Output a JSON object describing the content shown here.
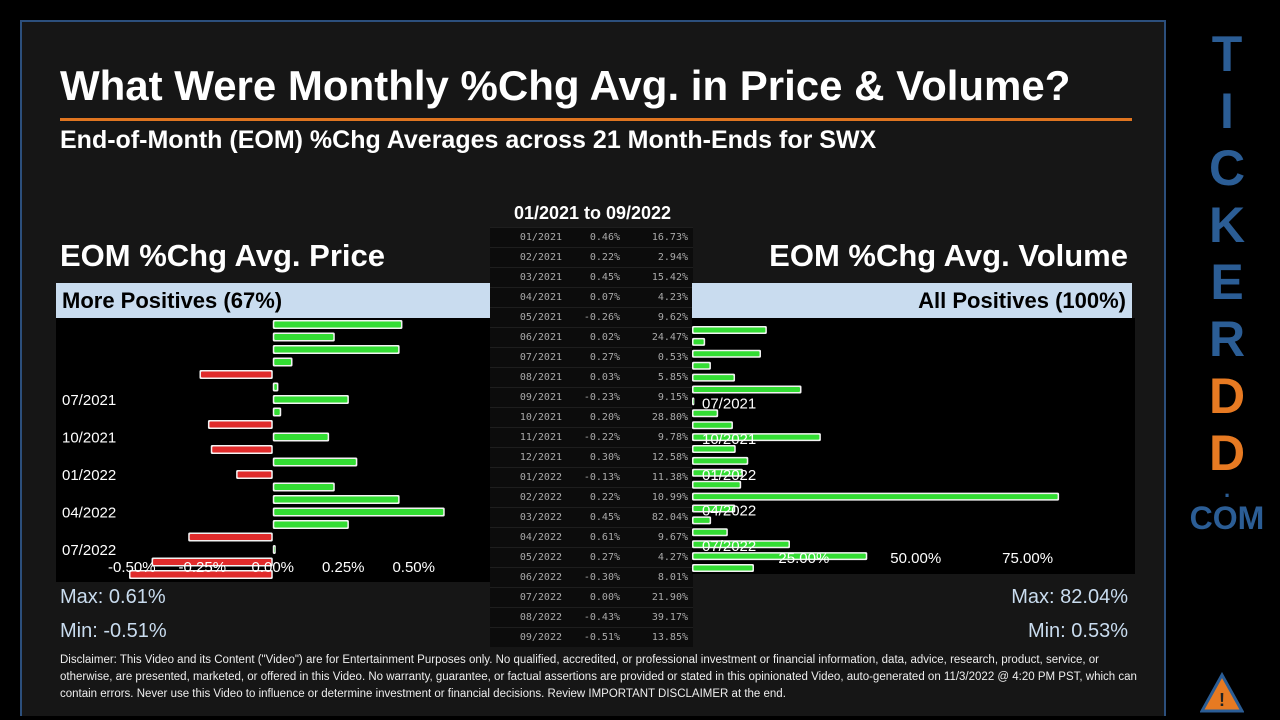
{
  "title": "What Were Monthly %Chg Avg. in Price & Volume?",
  "subtitle": "End-of-Month (EOM) %Chg Averages across 21 Month-Ends for SWX",
  "date_range": "01/2021 to 09/2022",
  "price_panel": {
    "heading": "EOM %Chg Avg. Price",
    "band": "More Positives (67%)",
    "max": "Max: 0.61%",
    "min": "Min: -0.51%"
  },
  "volume_panel": {
    "heading": "EOM %Chg Avg. Volume",
    "band": "All Positives (100%)",
    "max": "Max: 82.04%",
    "min": "Min: 0.53%"
  },
  "table": [
    {
      "month": "01/2021",
      "price": "0.46%",
      "volume": "16.73%"
    },
    {
      "month": "02/2021",
      "price": "0.22%",
      "volume": "2.94%"
    },
    {
      "month": "03/2021",
      "price": "0.45%",
      "volume": "15.42%"
    },
    {
      "month": "04/2021",
      "price": "0.07%",
      "volume": "4.23%"
    },
    {
      "month": "05/2021",
      "price": "-0.26%",
      "volume": "9.62%"
    },
    {
      "month": "06/2021",
      "price": "0.02%",
      "volume": "24.47%"
    },
    {
      "month": "07/2021",
      "price": "0.27%",
      "volume": "0.53%"
    },
    {
      "month": "08/2021",
      "price": "0.03%",
      "volume": "5.85%"
    },
    {
      "month": "09/2021",
      "price": "-0.23%",
      "volume": "9.15%"
    },
    {
      "month": "10/2021",
      "price": "0.20%",
      "volume": "28.80%"
    },
    {
      "month": "11/2021",
      "price": "-0.22%",
      "volume": "9.78%"
    },
    {
      "month": "12/2021",
      "price": "0.30%",
      "volume": "12.58%"
    },
    {
      "month": "01/2022",
      "price": "-0.13%",
      "volume": "11.38%"
    },
    {
      "month": "02/2022",
      "price": "0.22%",
      "volume": "10.99%"
    },
    {
      "month": "03/2022",
      "price": "0.45%",
      "volume": "82.04%"
    },
    {
      "month": "04/2022",
      "price": "0.61%",
      "volume": "9.67%"
    },
    {
      "month": "05/2022",
      "price": "0.27%",
      "volume": "4.27%"
    },
    {
      "month": "06/2022",
      "price": "-0.30%",
      "volume": "8.01%"
    },
    {
      "month": "07/2022",
      "price": "0.00%",
      "volume": "21.90%"
    },
    {
      "month": "08/2022",
      "price": "-0.43%",
      "volume": "39.17%"
    },
    {
      "month": "09/2022",
      "price": "-0.51%",
      "volume": "13.85%"
    }
  ],
  "chart_data": [
    {
      "type": "bar",
      "orientation": "horizontal",
      "title": "EOM %Chg Avg. Price",
      "categories": [
        "01/2021",
        "02/2021",
        "03/2021",
        "04/2021",
        "05/2021",
        "06/2021",
        "07/2021",
        "08/2021",
        "09/2021",
        "10/2021",
        "11/2021",
        "12/2021",
        "01/2022",
        "02/2022",
        "03/2022",
        "04/2022",
        "05/2022",
        "06/2022",
        "07/2022",
        "08/2022",
        "09/2022"
      ],
      "values": [
        0.46,
        0.22,
        0.45,
        0.07,
        -0.26,
        0.02,
        0.27,
        0.03,
        -0.23,
        0.2,
        -0.22,
        0.3,
        -0.13,
        0.22,
        0.45,
        0.61,
        0.27,
        -0.3,
        0.0,
        -0.43,
        -0.51
      ],
      "category_labels_shown": [
        "07/2021",
        "10/2021",
        "01/2022",
        "04/2022",
        "07/2022"
      ],
      "x_ticks": [
        "-0.50%",
        "-0.25%",
        "0.00%",
        "0.25%",
        "0.50%"
      ],
      "xlim": [
        -0.62,
        0.65
      ],
      "positive_color": "#33dd33",
      "negative_color": "#e02b2b"
    },
    {
      "type": "bar",
      "orientation": "horizontal",
      "title": "EOM %Chg Avg. Volume",
      "categories": [
        "01/2021",
        "02/2021",
        "03/2021",
        "04/2021",
        "05/2021",
        "06/2021",
        "07/2021",
        "08/2021",
        "09/2021",
        "10/2021",
        "11/2021",
        "12/2021",
        "01/2022",
        "02/2022",
        "03/2022",
        "04/2022",
        "05/2022",
        "06/2022",
        "07/2022",
        "08/2022",
        "09/2022"
      ],
      "values": [
        16.73,
        2.94,
        15.42,
        4.23,
        9.62,
        24.47,
        0.53,
        5.85,
        9.15,
        28.8,
        9.78,
        12.58,
        11.38,
        10.99,
        82.04,
        9.67,
        4.27,
        8.01,
        21.9,
        39.17,
        13.85
      ],
      "category_labels_shown": [
        "07/2021",
        "10/2021",
        "01/2022",
        "04/2022",
        "07/2022"
      ],
      "x_ticks": [
        "25.00%",
        "50.00%",
        "75.00%"
      ],
      "xlim": [
        0,
        99
      ],
      "positive_color": "#33dd33"
    }
  ],
  "disclaimer": "Disclaimer: This Video and its Content (\"Video\") are for Entertainment Purposes only. No qualified, accredited, or professional investment or financial information, data, advice, research, product, service, or otherwise, are presented, marketed, or offered in this Video. No warranty, guarantee, or factual assertions are provided or stated in this opinionated Video, auto-generated on 11/3/2022 @ 4:20 PM PST, which can contain errors. Never use this Video to influence or determine investment or financial decisions. Review IMPORTANT DISCLAIMER at the end.",
  "brand": {
    "letters": [
      "T",
      "I",
      "C",
      "K",
      "E",
      "R",
      "D",
      "D"
    ],
    "dot": ".",
    "com": "COM",
    "blue": "#2b5d95",
    "orange": "#e77a22"
  }
}
